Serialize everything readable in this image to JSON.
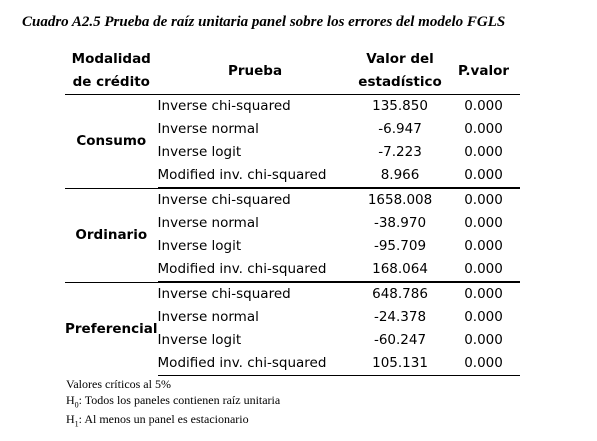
{
  "title": "Cuadro A2.5 Prueba de raíz unitaria panel sobre los errores del modelo FGLS",
  "headers": {
    "modalidad_line1": "Modalidad",
    "modalidad_line2": "de crédito",
    "prueba": "Prueba",
    "valor_line1": "Valor del",
    "valor_line2": "estadístico",
    "pvalor": "P.valor"
  },
  "groups": [
    {
      "name": "Consumo",
      "rows": [
        {
          "test": "Inverse chi-squared",
          "value": "135.850",
          "p": "0.000"
        },
        {
          "test": "Inverse normal",
          "value": "-6.947",
          "p": "0.000"
        },
        {
          "test": "Inverse logit",
          "value": "-7.223",
          "p": "0.000"
        },
        {
          "test": "Modified inv. chi-squared",
          "value": "8.966",
          "p": "0.000"
        }
      ]
    },
    {
      "name": "Ordinario",
      "rows": [
        {
          "test": "Inverse chi-squared",
          "value": "1658.008",
          "p": "0.000"
        },
        {
          "test": "Inverse normal",
          "value": "-38.970",
          "p": "0.000"
        },
        {
          "test": "Inverse logit",
          "value": "-95.709",
          "p": "0.000"
        },
        {
          "test": "Modified inv. chi-squared",
          "value": "168.064",
          "p": "0.000"
        }
      ]
    },
    {
      "name": "Preferencial",
      "rows": [
        {
          "test": "Inverse chi-squared",
          "value": "648.786",
          "p": "0.000"
        },
        {
          "test": "Inverse normal",
          "value": "-24.378",
          "p": "0.000"
        },
        {
          "test": "Inverse logit",
          "value": "-60.247",
          "p": "0.000"
        },
        {
          "test": "Modified inv. chi-squared",
          "value": "105.131",
          "p": "0.000"
        }
      ]
    }
  ],
  "notes": {
    "line1": "Valores críticos al 5%",
    "line2_prefix": "H",
    "line2_sub": "0",
    "line2_text": ": Todos los paneles contienen raíz unitaria",
    "line3_prefix": "H",
    "line3_sub": "1",
    "line3_text": ": Al menos un panel es estacionario"
  }
}
